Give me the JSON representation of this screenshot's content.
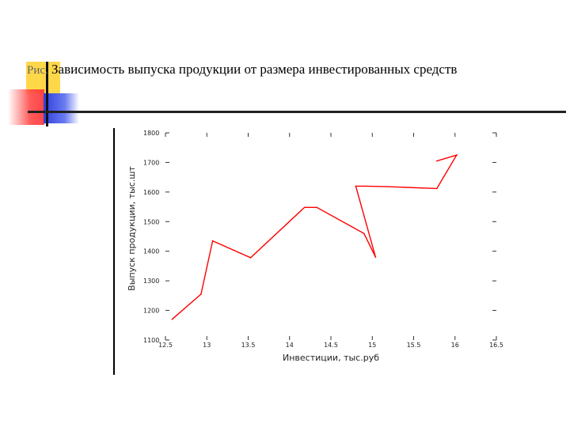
{
  "slide": {
    "title_prefix": "Рис.",
    "title_text": " Зависимость выпуска продукции от размера инвестированных средств"
  },
  "theme": {
    "line_color": "#ff0000",
    "axis_color": "#000000",
    "deco_yellow": "#ffd84a",
    "deco_red": "#ff3030",
    "deco_blue": "#2d3ee0"
  },
  "chart_data": {
    "type": "line",
    "title": "",
    "xlabel": "Инвестиции, тыс.руб",
    "ylabel": "Выпуск продукции, тыс.шт",
    "xlim": [
      12.5,
      16.5
    ],
    "ylim": [
      1100,
      1800
    ],
    "x_ticks": [
      "12.5",
      "13",
      "13.5",
      "14",
      "14.5",
      "15",
      "15.5",
      "16",
      "16.5"
    ],
    "y_ticks": [
      "1100",
      "1200",
      "1300",
      "1400",
      "1500",
      "1600",
      "1700",
      "1800"
    ],
    "grid": false,
    "series": [
      {
        "points": [
          [
            12.58,
            1170
          ],
          [
            12.93,
            1255
          ],
          [
            13.07,
            1435
          ],
          [
            13.53,
            1378
          ],
          [
            14.18,
            1548
          ],
          [
            14.33,
            1548
          ],
          [
            14.9,
            1460
          ],
          [
            15.04,
            1380
          ],
          [
            14.8,
            1620
          ],
          [
            14.92,
            1620
          ],
          [
            15.2,
            1618
          ],
          [
            15.78,
            1612
          ],
          [
            16.02,
            1725
          ],
          [
            15.78,
            1705
          ]
        ]
      }
    ]
  }
}
